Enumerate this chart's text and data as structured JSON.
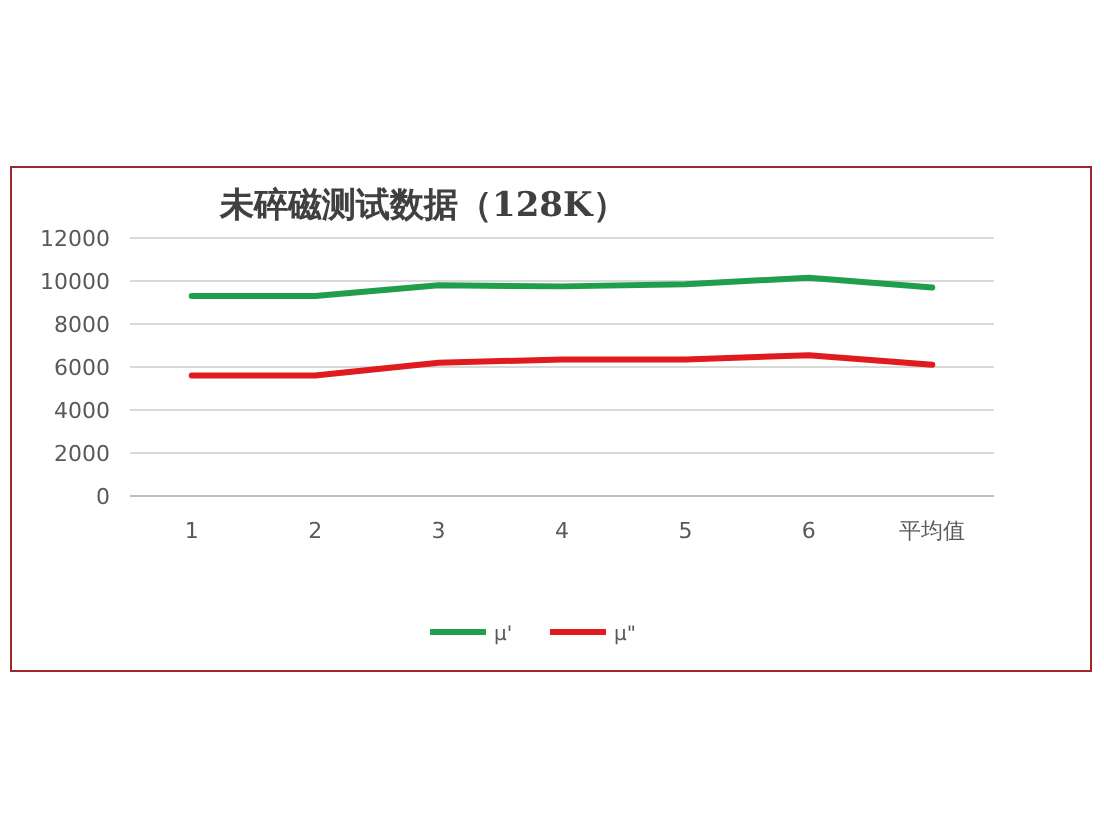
{
  "chart_data": {
    "type": "line",
    "title": "未碎磁测试数据（128K）",
    "categories": [
      "1",
      "2",
      "3",
      "4",
      "5",
      "6",
      "平均值"
    ],
    "series": [
      {
        "name": "μ'",
        "color": "#1f9e4b",
        "values": [
          9300,
          9300,
          9800,
          9750,
          9850,
          10150,
          9700
        ]
      },
      {
        "name": "μ\"",
        "color": "#e01a1f",
        "values": [
          5600,
          5600,
          6200,
          6350,
          6350,
          6550,
          6100
        ]
      }
    ],
    "ylim": [
      0,
      12000
    ],
    "yticks": [
      0,
      2000,
      4000,
      6000,
      8000,
      10000,
      12000
    ],
    "grid": "y",
    "legend": "bottom",
    "marker": "none",
    "line_style": "solid"
  }
}
